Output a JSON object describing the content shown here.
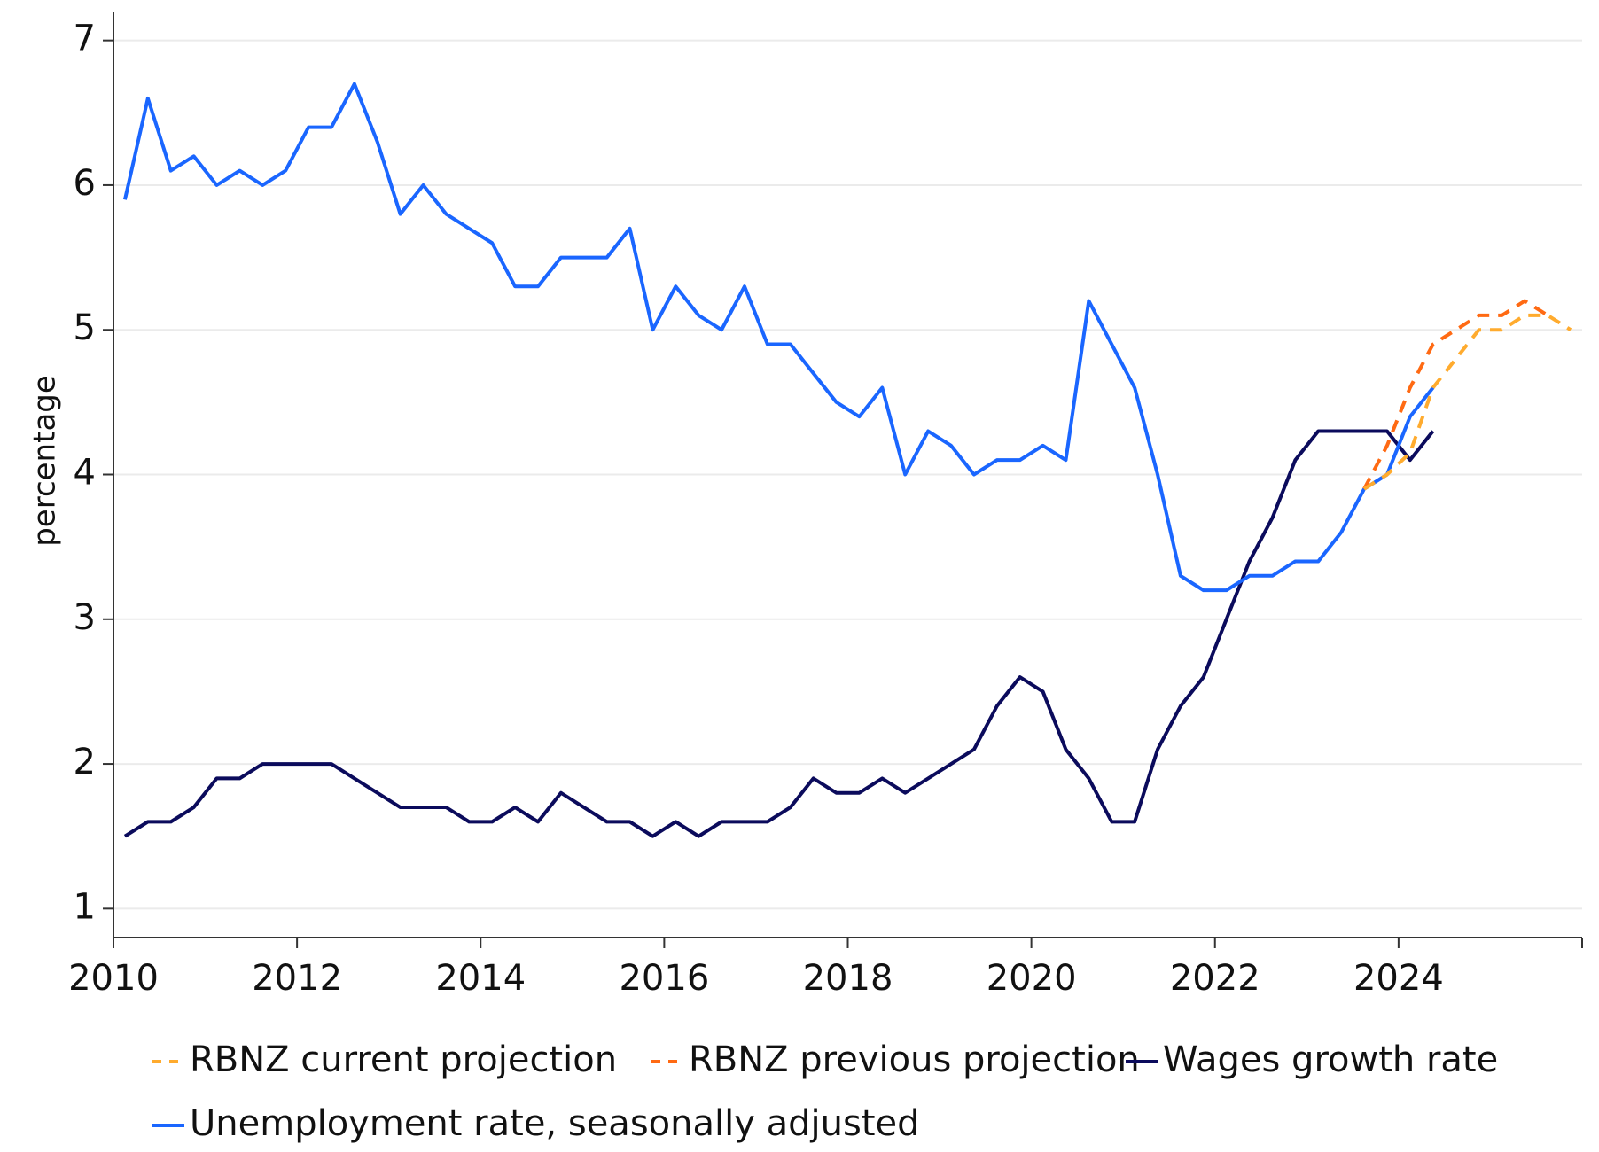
{
  "chart_data": {
    "type": "line",
    "y_label": "percentage",
    "x": [
      2010.125,
      2010.375,
      2010.625,
      2010.875,
      2011.125,
      2011.375,
      2011.625,
      2011.875,
      2012.125,
      2012.375,
      2012.625,
      2012.875,
      2013.125,
      2013.375,
      2013.625,
      2013.875,
      2014.125,
      2014.375,
      2014.625,
      2014.875,
      2015.125,
      2015.375,
      2015.625,
      2015.875,
      2016.125,
      2016.375,
      2016.625,
      2016.875,
      2017.125,
      2017.375,
      2017.625,
      2017.875,
      2018.125,
      2018.375,
      2018.625,
      2018.875,
      2019.125,
      2019.375,
      2019.625,
      2019.875,
      2020.125,
      2020.375,
      2020.625,
      2020.875,
      2021.125,
      2021.375,
      2021.625,
      2021.875,
      2022.125,
      2022.375,
      2022.625,
      2022.875,
      2023.125,
      2023.375,
      2023.625,
      2023.875,
      2024.125,
      2024.375,
      2024.625,
      2024.875,
      2025.125,
      2025.375,
      2025.625,
      2025.875
    ],
    "series": [
      {
        "name": "RBNZ current projection",
        "color": "#ffab2e",
        "dashed": true,
        "values": [
          null,
          null,
          null,
          null,
          null,
          null,
          null,
          null,
          null,
          null,
          null,
          null,
          null,
          null,
          null,
          null,
          null,
          null,
          null,
          null,
          null,
          null,
          null,
          null,
          null,
          null,
          null,
          null,
          null,
          null,
          null,
          null,
          null,
          null,
          null,
          null,
          null,
          null,
          null,
          null,
          null,
          null,
          null,
          null,
          null,
          null,
          null,
          null,
          null,
          null,
          null,
          null,
          null,
          null,
          3.9,
          4.0,
          4.15,
          4.6,
          4.8,
          5.0,
          5.0,
          5.1,
          5.1,
          5.0
        ]
      },
      {
        "name": "RBNZ previous projection",
        "color": "#ff6a13",
        "dashed": true,
        "values": [
          null,
          null,
          null,
          null,
          null,
          null,
          null,
          null,
          null,
          null,
          null,
          null,
          null,
          null,
          null,
          null,
          null,
          null,
          null,
          null,
          null,
          null,
          null,
          null,
          null,
          null,
          null,
          null,
          null,
          null,
          null,
          null,
          null,
          null,
          null,
          null,
          null,
          null,
          null,
          null,
          null,
          null,
          null,
          null,
          null,
          null,
          null,
          null,
          null,
          null,
          null,
          null,
          null,
          null,
          3.9,
          4.2,
          4.6,
          4.9,
          5.0,
          5.1,
          5.1,
          5.2,
          5.1,
          null
        ]
      },
      {
        "name": "Wages growth rate",
        "color": "#0b0b5c",
        "dashed": false,
        "values": [
          1.5,
          1.6,
          1.6,
          1.7,
          1.9,
          1.9,
          2.0,
          2.0,
          2.0,
          2.0,
          1.9,
          1.8,
          1.7,
          1.7,
          1.7,
          1.6,
          1.6,
          1.7,
          1.6,
          1.8,
          1.7,
          1.6,
          1.6,
          1.5,
          1.6,
          1.5,
          1.6,
          1.6,
          1.6,
          1.7,
          1.9,
          1.8,
          1.8,
          1.9,
          1.8,
          1.9,
          2.0,
          2.1,
          2.4,
          2.6,
          2.5,
          2.1,
          1.9,
          1.6,
          1.6,
          2.1,
          2.4,
          2.6,
          3.0,
          3.4,
          3.7,
          4.1,
          4.3,
          4.3,
          4.3,
          4.3,
          4.1,
          4.3,
          null,
          null,
          null,
          null,
          null,
          null
        ]
      },
      {
        "name": "Unemployment rate, seasonally adjusted",
        "color": "#1a66ff",
        "dashed": false,
        "values": [
          5.9,
          6.6,
          6.1,
          6.2,
          6.0,
          6.1,
          6.0,
          6.1,
          6.4,
          6.4,
          6.7,
          6.3,
          5.8,
          6.0,
          5.8,
          5.7,
          5.6,
          5.3,
          5.3,
          5.5,
          5.5,
          5.5,
          5.7,
          5.0,
          5.3,
          5.1,
          5.0,
          5.3,
          4.9,
          4.9,
          4.7,
          4.5,
          4.4,
          4.6,
          4.0,
          4.3,
          4.2,
          4.0,
          4.1,
          4.1,
          4.2,
          4.1,
          5.2,
          4.9,
          4.6,
          4.0,
          3.3,
          3.2,
          3.2,
          3.3,
          3.3,
          3.4,
          3.4,
          3.6,
          3.9,
          4.0,
          4.4,
          4.6,
          null,
          null,
          null,
          null,
          null,
          null
        ]
      }
    ],
    "xlim": [
      2010,
      2026
    ],
    "xticks": [
      2010,
      2012,
      2014,
      2016,
      2018,
      2020,
      2022,
      2024
    ],
    "ylim": [
      0.8,
      7.2
    ],
    "yticks": [
      1,
      2,
      3,
      4,
      5,
      6,
      7
    ],
    "grid": true,
    "legend": "bottom"
  }
}
